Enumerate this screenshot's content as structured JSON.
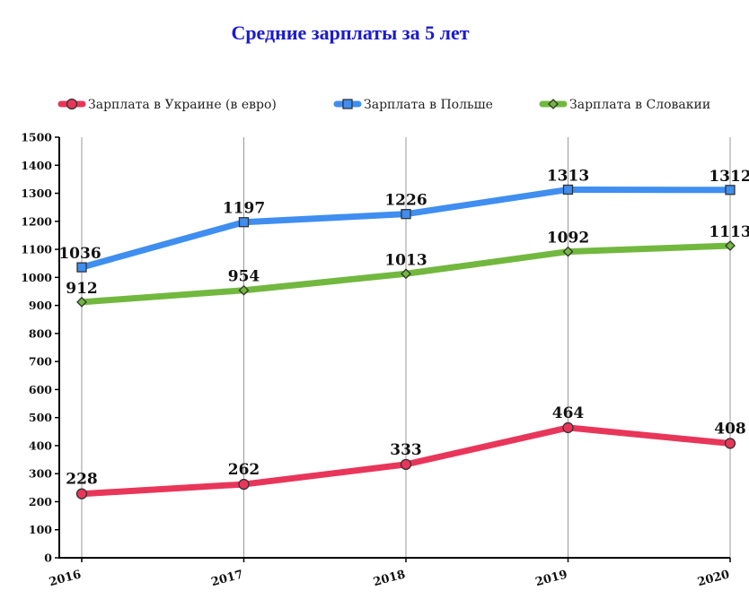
{
  "chart_data": {
    "type": "line",
    "title": "Средние зарплаты за 5 лет",
    "x": [
      "2016",
      "2017",
      "2018",
      "2019",
      "2020"
    ],
    "ylim": [
      0,
      1500
    ],
    "yticks": [
      0,
      100,
      200,
      300,
      400,
      500,
      600,
      700,
      800,
      900,
      1000,
      1100,
      1200,
      1300,
      1400,
      1500
    ],
    "grid": "vertical",
    "legend_position": "top",
    "series": [
      {
        "name": "Зарплата в Украине (в евро)",
        "values": [
          228,
          262,
          333,
          464,
          408
        ],
        "color": "#e8365a",
        "marker": "circle"
      },
      {
        "name": "Зарплата в Польше",
        "values": [
          1036,
          1197,
          1226,
          1313,
          1312
        ],
        "color": "#3f8ef0",
        "marker": "square"
      },
      {
        "name": "Зарплата в Словакии",
        "values": [
          912,
          954,
          1013,
          1092,
          1113
        ],
        "color": "#72b83f",
        "marker": "diamond"
      }
    ]
  }
}
